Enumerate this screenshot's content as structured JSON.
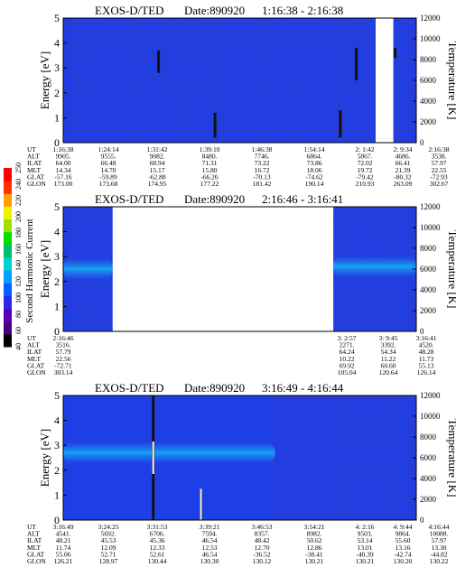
{
  "colors": {
    "background": "#1f3fe6",
    "noise": "#8a1f3a",
    "band": "#1a8cf2",
    "band_core": "#12b6f4",
    "gap": "#ffffff",
    "spike_dark": "#111111",
    "spike_bright": "#ffffff"
  },
  "chart_data": [
    {
      "type": "heatmap",
      "title": "EXOS-D/TED",
      "date_label": "Date:890920",
      "time_range": "1:16:38 - 2:16:38",
      "ylabel": "Energy [eV]",
      "ylabel_right": "Temperature [K]",
      "ylim": [
        0,
        5
      ],
      "ylim_right": [
        0,
        12000
      ],
      "yticks": [
        "0",
        "1",
        "2",
        "3",
        "4",
        "5"
      ],
      "yticks_right": [
        "0",
        "2000",
        "4000",
        "6000",
        "8000",
        "10000",
        "12000"
      ],
      "data_gaps": [
        [
          0.885,
          0.935
        ]
      ],
      "spikes": [
        {
          "x": 0.27,
          "y1": 2.8,
          "y2": 3.7
        },
        {
          "x": 0.43,
          "y1": 0.2,
          "y2": 1.2
        },
        {
          "x": 0.785,
          "y1": 0.2,
          "y2": 1.3
        },
        {
          "x": 0.83,
          "y1": 2.5,
          "y2": 3.8
        },
        {
          "x": 0.94,
          "y1": 3.4,
          "y2": 3.8
        }
      ],
      "band": null,
      "rows": [
        {
          "label": "UT",
          "values": [
            "1:16:38",
            "1:24:14",
            "1:31:42",
            "1:39:10",
            "1:46:38",
            "1:54:14",
            "2: 1:42",
            "2: 9:34",
            "2:16:38"
          ]
        },
        {
          "label": "ALT",
          "values": [
            "9905.",
            "9555.",
            "9082.",
            "8480.",
            "7746.",
            "6864.",
            "5867.",
            "4686.",
            "3538."
          ]
        },
        {
          "label": "ILAT",
          "values": [
            "64.00",
            "66.48",
            "68.94",
            "71.31",
            "73.22",
            "73.86",
            "72.02",
            "66.41",
            "57.97"
          ]
        },
        {
          "label": "MLT",
          "values": [
            "14.34",
            "14.70",
            "15.17",
            "15.80",
            "16.72",
            "18.06",
            "19.72",
            "21.39",
            "22.55"
          ]
        },
        {
          "label": "GLAT",
          "values": [
            "-57.16",
            "-59.89",
            "-62.88",
            "-66.26",
            "-70.13",
            "-74.62",
            "-79.42",
            "-80.32",
            "-72.93"
          ]
        },
        {
          "label": "GLON",
          "values": [
            "173.00",
            "173.68",
            "174.95",
            "177.22",
            "181.42",
            "190.14",
            "210.93",
            "263.09",
            "302.67"
          ]
        }
      ]
    },
    {
      "type": "heatmap",
      "title": "EXOS-D/TED",
      "date_label": "Date:890920",
      "time_range": "2:16:46 - 3:16:41",
      "ylabel": "Energy [eV]",
      "ylabel_right": "Temperature [K]",
      "ylim": [
        0,
        5
      ],
      "ylim_right": [
        0,
        12000
      ],
      "yticks": [
        "0",
        "1",
        "2",
        "3",
        "4",
        "5"
      ],
      "yticks_right": [
        "0",
        "2000",
        "4000",
        "6000",
        "8000",
        "10000",
        "12000"
      ],
      "data_gaps": [
        [
          0.14,
          0.765
        ]
      ],
      "spikes": [],
      "band": {
        "left": {
          "x_end": 0.14,
          "energy": 2.5
        },
        "right": {
          "x_start": 0.765,
          "energy": 2.6
        }
      },
      "rows": [
        {
          "label": "UT",
          "values": [
            "2:16:46",
            "3: 2:57",
            "3: 9:45",
            "3:16:41"
          ]
        },
        {
          "label": "ALT",
          "values": [
            "3516.",
            "2271.",
            "3392.",
            "4520."
          ]
        },
        {
          "label": "ILAT",
          "values": [
            "57.79",
            "64.24",
            "54.34",
            "48.28"
          ]
        },
        {
          "label": "MLT",
          "values": [
            "22.56",
            "10.22",
            "11.22",
            "11.73"
          ]
        },
        {
          "label": "GLAT",
          "values": [
            "-72.71",
            "69.92",
            "60.60",
            "55.13"
          ]
        },
        {
          "label": "GLON",
          "values": [
            "303.14",
            "105.04",
            "120.64",
            "126.14"
          ]
        }
      ]
    },
    {
      "type": "heatmap",
      "title": "EXOS-D/TED",
      "date_label": "Date:890920",
      "time_range": "3:16:49 - 4:16:44",
      "ylabel": "Energy [eV]",
      "ylabel_right": "Temperature [K]",
      "ylim": [
        0,
        5
      ],
      "ylim_right": [
        0,
        12000
      ],
      "yticks": [
        "0",
        "1",
        "2",
        "3",
        "4",
        "5"
      ],
      "yticks_right": [
        "0",
        "2000",
        "4000",
        "6000",
        "8000",
        "10000",
        "12000"
      ],
      "data_gaps": [],
      "spikes": [
        {
          "x": 0.255,
          "y1": 0.0,
          "y2": 5.0
        },
        {
          "x": 0.39,
          "y1": 0.0,
          "y2": 1.2
        }
      ],
      "band": {
        "x_start": 0.0,
        "x_end": 0.6,
        "energy": 2.7
      },
      "rows": [
        {
          "label": "UT",
          "values": [
            "3:16:49",
            "3:24:25",
            "3:31:53",
            "3:39:21",
            "3:46:53",
            "3:54:21",
            "4: 2:16",
            "4: 9:44",
            "4:16:44"
          ]
        },
        {
          "label": "ALT",
          "values": [
            "4541.",
            "5692.",
            "6706.",
            "7594.",
            "8357.",
            "8982.",
            "9503.",
            "9864.",
            "10088."
          ]
        },
        {
          "label": "ILAT",
          "values": [
            "48.21",
            "45.53",
            "45.36",
            "46.54",
            "48.42",
            "50.62",
            "53.14",
            "55.60",
            "57.97"
          ]
        },
        {
          "label": "MLT",
          "values": [
            "11.74",
            "12.09",
            "12.33",
            "12.53",
            "12.70",
            "12.86",
            "13.01",
            "13.16",
            "13.30"
          ]
        },
        {
          "label": "GLAT",
          "values": [
            "55.06",
            "52.71",
            "52.61",
            "46.54",
            "-36.52",
            "-38.41",
            "-40.39",
            "-42.74",
            "-44.82"
          ]
        },
        {
          "label": "GLON",
          "values": [
            "126.21",
            "128.97",
            "130.44",
            "130.30",
            "130.12",
            "130.21",
            "130.21",
            "130.20",
            "130.22"
          ]
        }
      ]
    }
  ],
  "colorbar": {
    "label": "Second Harmonic Current",
    "ticks": [
      "40",
      "60",
      "80",
      "100",
      "120",
      "140",
      "160",
      "180",
      "200",
      "220",
      "240",
      "250"
    ],
    "colors": [
      "#000000",
      "#4b0082",
      "#5a00b4",
      "#2a2ae8",
      "#0060ff",
      "#00a0ff",
      "#00d2d2",
      "#00c070",
      "#00e000",
      "#a0e000",
      "#f0f000",
      "#ffa000",
      "#ff3000",
      "#ff0000"
    ]
  }
}
